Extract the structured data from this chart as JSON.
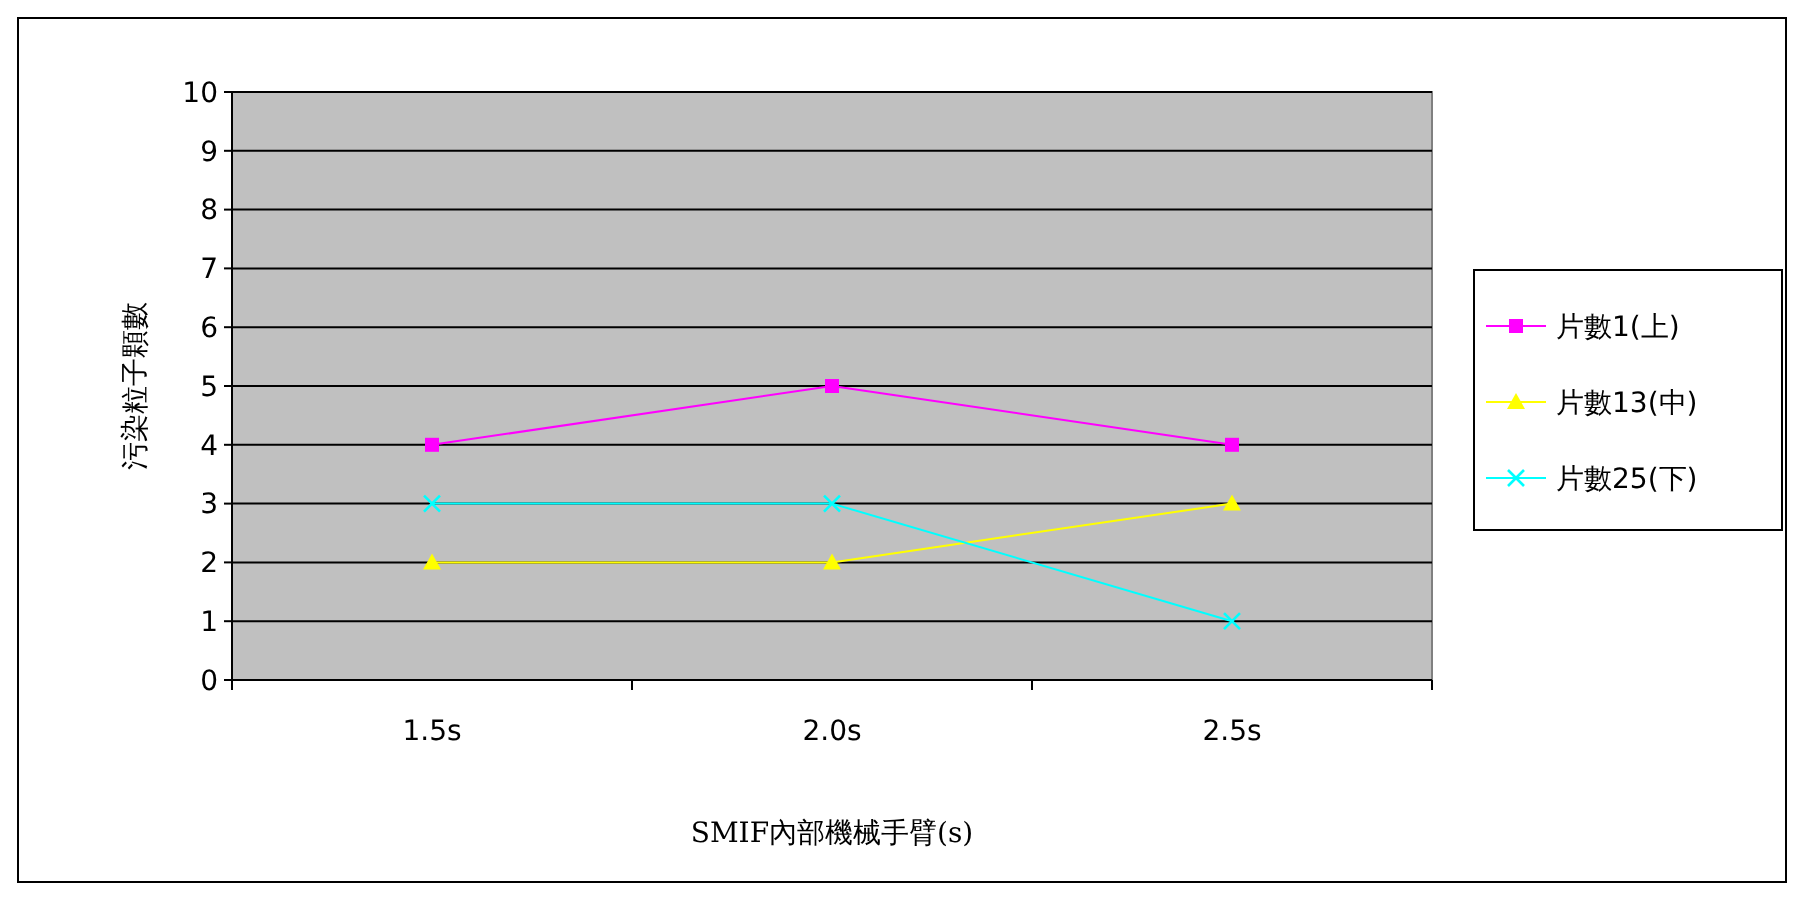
{
  "chart_data": {
    "type": "line",
    "xlabel": "SMIF內部機械手臂(s)",
    "ylabel": "污染粒子顆數",
    "categories": [
      "1.5s",
      "2.0s",
      "2.5s"
    ],
    "series": [
      {
        "name": "片數1(上)",
        "color": "#ff00ff",
        "marker": "square",
        "values": [
          4,
          5,
          4
        ]
      },
      {
        "name": "片數13(中)",
        "color": "#ffff00",
        "marker": "triangle",
        "values": [
          2,
          2,
          3
        ]
      },
      {
        "name": "片數25(下)",
        "color": "#00ffff",
        "marker": "cross",
        "values": [
          3,
          3,
          1
        ]
      }
    ],
    "ylim": [
      0,
      10
    ],
    "yticks": [
      0,
      1,
      2,
      3,
      4,
      5,
      6,
      7,
      8,
      9,
      10
    ],
    "grid": "y",
    "legend": "right"
  }
}
